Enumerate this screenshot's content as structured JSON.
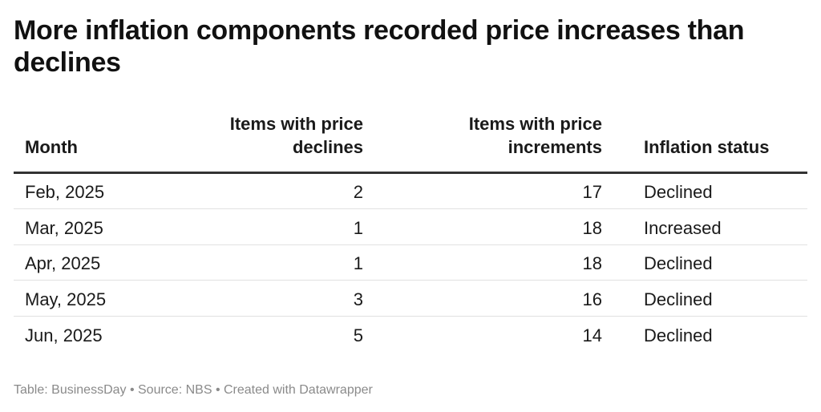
{
  "chart_data": {
    "type": "table",
    "title": "More inflation components recorded price increases than declines",
    "columns": [
      "Month",
      "Items with price declines",
      "Items with price increments",
      "Inflation status"
    ],
    "rows": [
      {
        "month": "Feb, 2025",
        "declines": 2,
        "increments": 17,
        "status": "Declined"
      },
      {
        "month": "Mar, 2025",
        "declines": 1,
        "increments": 18,
        "status": "Increased"
      },
      {
        "month": "Apr, 2025",
        "declines": 1,
        "increments": 18,
        "status": "Declined"
      },
      {
        "month": "May, 2025",
        "declines": 3,
        "increments": 16,
        "status": "Declined"
      },
      {
        "month": "Jun, 2025",
        "declines": 5,
        "increments": 14,
        "status": "Declined"
      }
    ],
    "footer": "Table: BusinessDay • Source: NBS • Created with Datawrapper"
  }
}
